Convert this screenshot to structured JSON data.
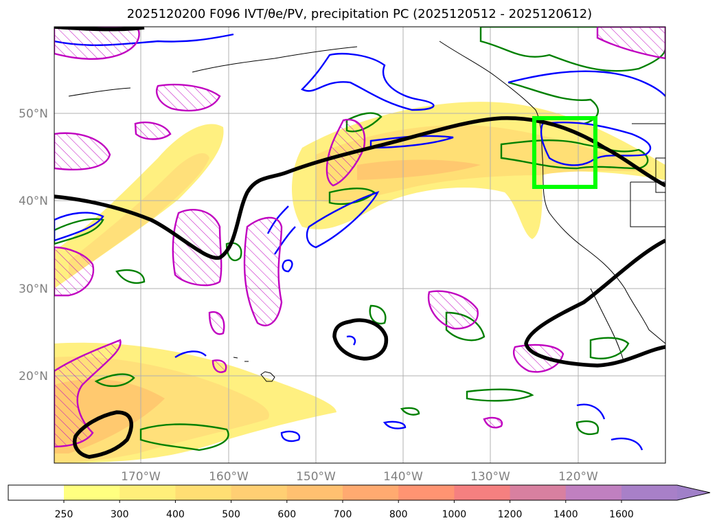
{
  "title": "2025120200 F096 IVT/θe/PV, precipitation PC (2025120512 - 2025120612)",
  "map": {
    "lat_labels": [
      "20°N",
      "30°N",
      "40°N",
      "50°N"
    ],
    "lon_labels": [
      "170°W",
      "160°W",
      "150°W",
      "140°W",
      "130°W",
      "120°W"
    ],
    "region_box_color": "#00ff00",
    "contour_colors": {
      "pv": "#000000",
      "theta_e": "#0000ff",
      "precip": "#008000",
      "hatch": "#c000c0"
    }
  },
  "colorbar": {
    "levels": [
      "250",
      "300",
      "400",
      "500",
      "600",
      "700",
      "800",
      "1000",
      "1200",
      "1400",
      "1600"
    ],
    "colors": [
      "#ffff80",
      "#ffef7a",
      "#ffde73",
      "#ffcf73",
      "#ffc070",
      "#ffaa70",
      "#ff9472",
      "#f58080",
      "#d880a0",
      "#c080c0",
      "#a880c8",
      "#a080c8"
    ],
    "extend": "max"
  }
}
